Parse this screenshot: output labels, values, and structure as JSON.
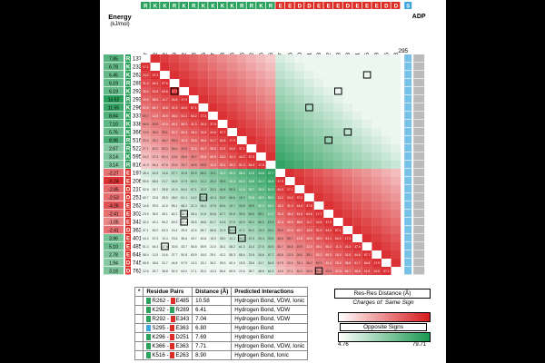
{
  "energy_label": "Energy",
  "energy_unit": "(kJ/mol)",
  "top_residues": [
    {
      "letter": "R",
      "num": "137",
      "type": "R"
    },
    {
      "letter": "K",
      "num": "232",
      "type": "K"
    },
    {
      "letter": "K",
      "num": "262",
      "type": "K"
    },
    {
      "letter": "R",
      "num": "289",
      "type": "R"
    },
    {
      "letter": "K",
      "num": "292",
      "type": "K"
    },
    {
      "letter": "R",
      "num": "293",
      "type": "R"
    },
    {
      "letter": "K",
      "num": "296",
      "type": "K"
    },
    {
      "letter": "K",
      "num": "337",
      "type": "K"
    },
    {
      "letter": "K",
      "num": "338",
      "type": "K"
    },
    {
      "letter": "K",
      "num": "366",
      "type": "K"
    },
    {
      "letter": "R",
      "num": "516",
      "type": "R"
    },
    {
      "letter": "R",
      "num": "522",
      "type": "R"
    },
    {
      "letter": "K",
      "num": "595",
      "type": "K"
    },
    {
      "letter": "R",
      "num": "816",
      "type": "R"
    },
    {
      "letter": "E",
      "num": "197",
      "type": "E"
    },
    {
      "letter": "E",
      "num": "206",
      "type": "E"
    },
    {
      "letter": "D",
      "num": "210",
      "type": "D"
    },
    {
      "letter": "D",
      "num": "251",
      "type": "D"
    },
    {
      "letter": "E",
      "num": "263",
      "type": "E"
    },
    {
      "letter": "E",
      "num": "302",
      "type": "E"
    },
    {
      "letter": "E",
      "num": "343",
      "type": "E"
    },
    {
      "letter": "D",
      "num": "363",
      "type": "D"
    },
    {
      "letter": "E",
      "num": "401",
      "type": "E"
    },
    {
      "letter": "E",
      "num": "485",
      "type": "E"
    },
    {
      "letter": "E",
      "num": "648",
      "type": "E"
    },
    {
      "letter": "D",
      "num": "745",
      "type": "D"
    },
    {
      "letter": "D",
      "num": "763",
      "type": "D"
    }
  ],
  "rows": [
    {
      "letter": "R",
      "num": "137",
      "energy": "7.85"
    },
    {
      "letter": "K",
      "num": "232",
      "energy": "6.78"
    },
    {
      "letter": "K",
      "num": "262",
      "energy": "6.45"
    },
    {
      "letter": "R",
      "num": "289",
      "energy": "6.19"
    },
    {
      "letter": "K",
      "num": "292",
      "energy": "6.19"
    },
    {
      "letter": "R",
      "num": "293",
      "energy": "13.52"
    },
    {
      "letter": "K",
      "num": "296",
      "energy": "11.55"
    },
    {
      "letter": "K",
      "num": "337",
      "energy": "8.84"
    },
    {
      "letter": "K",
      "num": "338",
      "energy": "7.10"
    },
    {
      "letter": "K",
      "num": "366",
      "energy": "5.76"
    },
    {
      "letter": "R",
      "num": "516",
      "energy": "8.98"
    },
    {
      "letter": "R",
      "num": "522",
      "energy": "2.67"
    },
    {
      "letter": "K",
      "num": "595",
      "energy": "3.14"
    },
    {
      "letter": "R",
      "num": "816",
      "energy": "3.14"
    },
    {
      "letter": "E",
      "num": "197",
      "energy": "-2.27"
    },
    {
      "letter": "E",
      "num": "206",
      "energy": "-6.24"
    },
    {
      "letter": "D",
      "num": "210",
      "energy": "-2.85"
    },
    {
      "letter": "D",
      "num": "251",
      "energy": "-2.53"
    },
    {
      "letter": "E",
      "num": "263",
      "energy": "-4.26"
    },
    {
      "letter": "E",
      "num": "302",
      "energy": "-2.41"
    },
    {
      "letter": "E",
      "num": "343",
      "energy": "-1.05"
    },
    {
      "letter": "D",
      "num": "363",
      "energy": "-2.41"
    },
    {
      "letter": "E",
      "num": "401",
      "energy": "3.96"
    },
    {
      "letter": "E",
      "num": "485",
      "energy": "5.10"
    },
    {
      "letter": "E",
      "num": "648",
      "energy": "2.78"
    },
    {
      "letter": "D",
      "num": "745",
      "energy": "1.94"
    },
    {
      "letter": "D",
      "num": "763",
      "energy": "3.18"
    }
  ],
  "right_label": "ADP",
  "right_label_s": "S",
  "right_label_num": "295",
  "colors": {
    "R": "#2ca25f",
    "K": "#2ca25f",
    "E": "#de2d26",
    "D": "#de2d26",
    "S": "#3ea6dc",
    "red": "#d7191c",
    "green": "#1a9850"
  },
  "pairs_table": {
    "headers": [
      "*",
      "Residue Pairs",
      "Distance (Å)",
      "Predicted Interactions"
    ],
    "rows": [
      {
        "a": "R262",
        "b": "E485",
        "d": "10.58",
        "i": "Hydrogen Bond, VDW, Ionic"
      },
      {
        "a": "K292",
        "b": "R289",
        "d": "6.41",
        "i": "Hydrogen Bond, VDW"
      },
      {
        "a": "R292",
        "b": "E343",
        "d": "7.04",
        "i": "Hydrogen Bond, VDW"
      },
      {
        "a": "S295",
        "b": "E363",
        "d": "6.80",
        "i": "Hydrogen Bond"
      },
      {
        "a": "K296",
        "b": "D251",
        "d": "7.69",
        "i": "Hydrogen Bond"
      },
      {
        "a": "K366",
        "b": "E363",
        "d": "7.71",
        "i": "Hydrogen Bond, VDW, Ionic"
      },
      {
        "a": "K516",
        "b": "E263",
        "d": "8.90",
        "i": "Hydrogen Bond, Ionic"
      }
    ]
  },
  "legend": {
    "title": "Res-Res Distance (Å)",
    "same_sign": "Charges of: Same Sign",
    "opposite": "Opposite Signs",
    "min": "4.76",
    "max": "79.71"
  }
}
